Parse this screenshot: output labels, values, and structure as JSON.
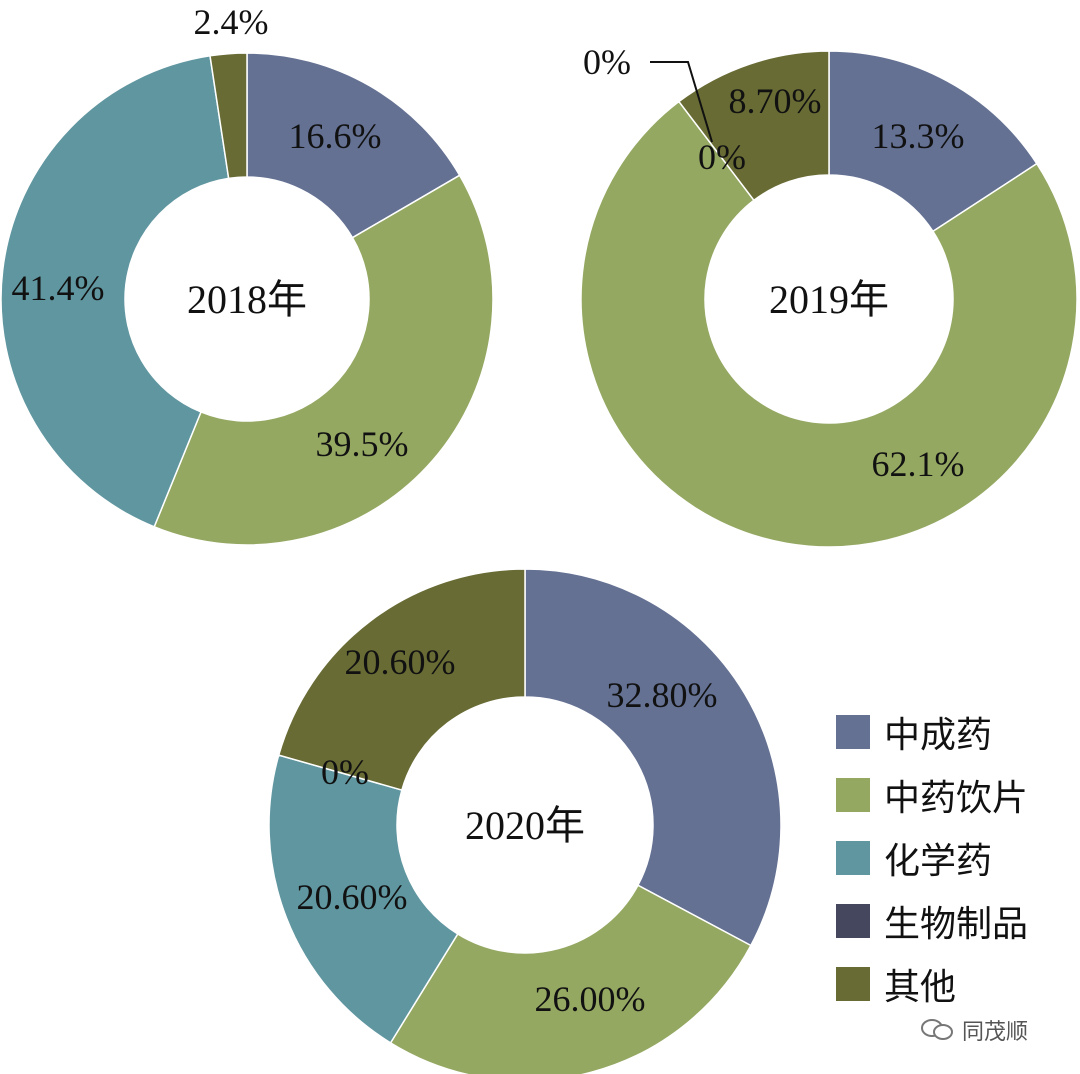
{
  "chart_data": [
    {
      "type": "pie",
      "center_label": "2018年",
      "categories": [
        "中成药",
        "中药饮片",
        "化学药",
        "其他"
      ],
      "values": [
        16.6,
        39.5,
        41.4,
        2.4
      ],
      "labels": [
        "16.6%",
        "39.5%",
        "41.4%",
        "2.4%"
      ]
    },
    {
      "type": "pie",
      "center_label": "2019年",
      "categories": [
        "中成药",
        "中药饮片",
        "化学药",
        "生物制品",
        "其他"
      ],
      "values": [
        13.3,
        62.1,
        0,
        0,
        8.7
      ],
      "labels": [
        "13.3%",
        "62.1%",
        "0%",
        "0%",
        "8.70%"
      ]
    },
    {
      "type": "pie",
      "center_label": "2020年",
      "categories": [
        "中成药",
        "中药饮片",
        "化学药",
        "生物制品",
        "其他"
      ],
      "values": [
        32.8,
        26.0,
        20.6,
        0,
        20.6
      ],
      "labels": [
        "32.80%",
        "26.00%",
        "20.60%",
        "0%",
        "20.60%"
      ]
    }
  ],
  "legend": [
    {
      "label": "中成药",
      "color": "#647193"
    },
    {
      "label": "中药饮片",
      "color": "#94a862"
    },
    {
      "label": "化学药",
      "color": "#6096a0"
    },
    {
      "label": "生物制品",
      "color": "#45475e"
    },
    {
      "label": "其他",
      "color": "#686b34"
    }
  ],
  "watermark": {
    "text": "同茂顺",
    "icon": "wechat-icon"
  }
}
